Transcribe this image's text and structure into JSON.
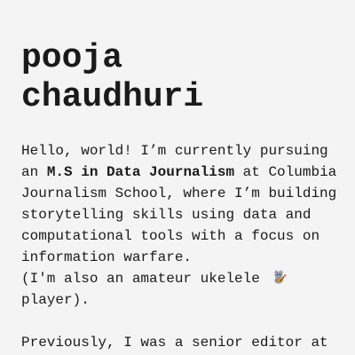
{
  "name": {
    "line1": "pooja",
    "line2": "chaudhuri"
  },
  "intro": {
    "before": "Hello, world! I’m currently pursuing an ",
    "bold": "M.S in Data Journalism",
    "after": " at Columbia Journalism School, where I’m building storytelling skills using data and computational tools with a focus on information warfare."
  },
  "aside": {
    "text": "(I'm also an amateur ukelele",
    "icon": "ukulele-cat-icon",
    "end": "player)."
  },
  "previous": {
    "text": "Previously, I was a senior editor at"
  }
}
